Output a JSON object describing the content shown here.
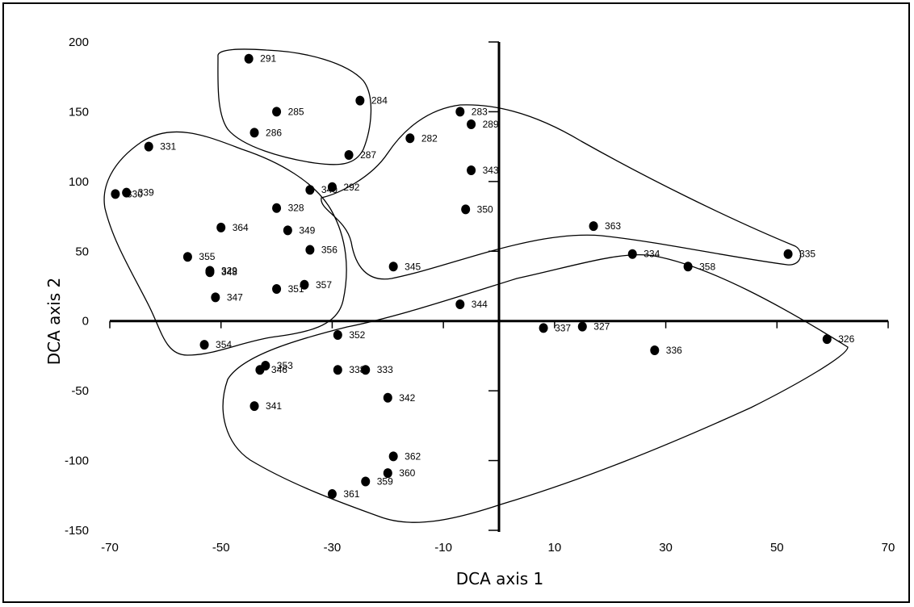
{
  "chart_data": {
    "type": "scatter",
    "title": "",
    "xlabel": "DCA axis 1",
    "ylabel": "DCA axis 2",
    "xlim": [
      -70,
      70
    ],
    "ylim": [
      -150,
      200
    ],
    "x_ticks": [
      -70,
      -50,
      -30,
      -10,
      10,
      30,
      50,
      70
    ],
    "y_ticks": [
      200,
      150,
      100,
      50,
      0,
      -50,
      -100,
      -150
    ],
    "x_tick_labels": [
      "-70",
      "-50",
      "-30",
      "-10",
      "10",
      "30",
      "50",
      "70"
    ],
    "y_tick_labels": [
      "200",
      "150",
      "100",
      "50",
      "0",
      "-50",
      "-100",
      "-150"
    ],
    "grid": false,
    "points": [
      {
        "label": "291",
        "x": -45,
        "y": 188
      },
      {
        "label": "284",
        "x": -25,
        "y": 158
      },
      {
        "label": "285",
        "x": -40,
        "y": 150
      },
      {
        "label": "286",
        "x": -44,
        "y": 135
      },
      {
        "label": "287",
        "x": -27,
        "y": 119
      },
      {
        "label": "283",
        "x": -7,
        "y": 150
      },
      {
        "label": "289",
        "x": -5,
        "y": 141
      },
      {
        "label": "282",
        "x": -16,
        "y": 131
      },
      {
        "label": "343",
        "x": -5,
        "y": 108
      },
      {
        "label": "292",
        "x": -30,
        "y": 96
      },
      {
        "label": "340",
        "x": -34,
        "y": 94
      },
      {
        "label": "350",
        "x": -6,
        "y": 80
      },
      {
        "label": "331",
        "x": -63,
        "y": 125
      },
      {
        "label": "339",
        "x": -67,
        "y": 92
      },
      {
        "label": "330",
        "x": -69,
        "y": 91
      },
      {
        "label": "328",
        "x": -40,
        "y": 81
      },
      {
        "label": "364",
        "x": -50,
        "y": 67
      },
      {
        "label": "349",
        "x": -38,
        "y": 65
      },
      {
        "label": "356",
        "x": -34,
        "y": 51
      },
      {
        "label": "355",
        "x": -56,
        "y": 46
      },
      {
        "label": "329",
        "x": -52,
        "y": 36
      },
      {
        "label": "348",
        "x": -52,
        "y": 35
      },
      {
        "label": "345",
        "x": -19,
        "y": 39
      },
      {
        "label": "357",
        "x": -35,
        "y": 26
      },
      {
        "label": "351",
        "x": -40,
        "y": 23
      },
      {
        "label": "347",
        "x": -51,
        "y": 17
      },
      {
        "label": "344",
        "x": -7,
        "y": 12
      },
      {
        "label": "363",
        "x": 17,
        "y": 68
      },
      {
        "label": "334",
        "x": 24,
        "y": 48
      },
      {
        "label": "335",
        "x": 52,
        "y": 48
      },
      {
        "label": "358",
        "x": 34,
        "y": 39
      },
      {
        "label": "352",
        "x": -29,
        "y": -10
      },
      {
        "label": "354",
        "x": -53,
        "y": -17
      },
      {
        "label": "337",
        "x": 8,
        "y": -5
      },
      {
        "label": "327",
        "x": 15,
        "y": -4
      },
      {
        "label": "326",
        "x": 59,
        "y": -13
      },
      {
        "label": "336",
        "x": 28,
        "y": -21
      },
      {
        "label": "353",
        "x": -42,
        "y": -32
      },
      {
        "label": "346",
        "x": -43,
        "y": -35
      },
      {
        "label": "338",
        "x": -29,
        "y": -35
      },
      {
        "label": "333",
        "x": -24,
        "y": -35
      },
      {
        "label": "342",
        "x": -20,
        "y": -55
      },
      {
        "label": "341",
        "x": -44,
        "y": -61
      },
      {
        "label": "362",
        "x": -19,
        "y": -97
      },
      {
        "label": "360",
        "x": -20,
        "y": -109
      },
      {
        "label": "359",
        "x": -24,
        "y": -115
      },
      {
        "label": "361",
        "x": -30,
        "y": -124
      }
    ]
  }
}
